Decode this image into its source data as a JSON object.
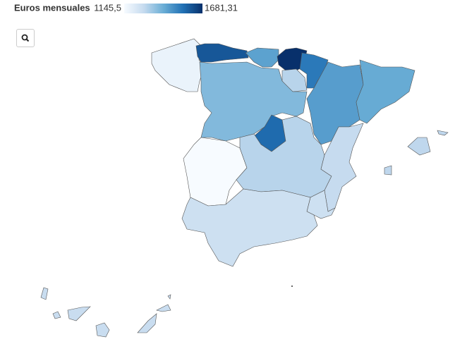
{
  "legend": {
    "title": "Euros mensuales",
    "min": {
      "value": 1145.5,
      "label": "1145,5"
    },
    "max": {
      "value": 1681.31,
      "label": "1681,31"
    }
  },
  "color_scale": [
    "#f7fbff",
    "#c6dbef",
    "#6baed6",
    "#2171b5",
    "#08306b"
  ],
  "regions": {
    "values": [
      1180,
      1600,
      1440,
      1681.31,
      1530,
      1300,
      1380,
      1450,
      1420,
      1560,
      1145.5,
      1300,
      1280,
      1260,
      1260,
      1290,
      1270
    ]
  }
}
